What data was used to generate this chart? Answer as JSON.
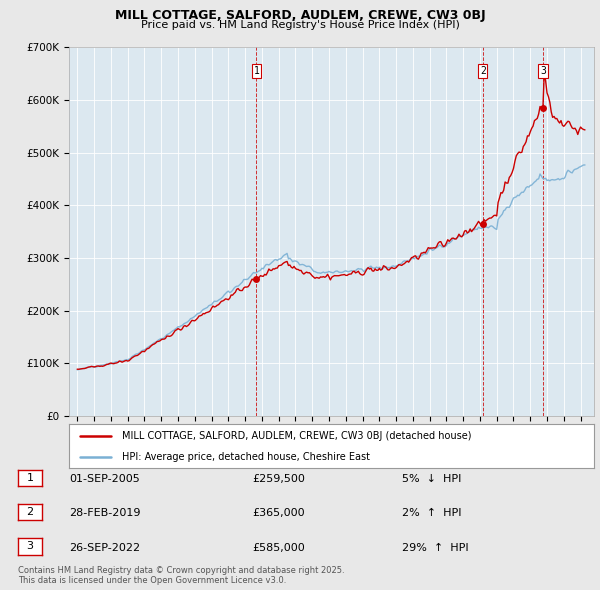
{
  "title": "MILL COTTAGE, SALFORD, AUDLEM, CREWE, CW3 0BJ",
  "subtitle": "Price paid vs. HM Land Registry's House Price Index (HPI)",
  "ylim": [
    0,
    700000
  ],
  "yticks": [
    0,
    100000,
    200000,
    300000,
    400000,
    500000,
    600000,
    700000
  ],
  "ytick_labels": [
    "£0",
    "£100K",
    "£200K",
    "£300K",
    "£400K",
    "£500K",
    "£600K",
    "£700K"
  ],
  "xlim_start": 1994.5,
  "xlim_end": 2025.8,
  "red_line_label": "MILL COTTAGE, SALFORD, AUDLEM, CREWE, CW3 0BJ (detached house)",
  "blue_line_label": "HPI: Average price, detached house, Cheshire East",
  "transactions": [
    {
      "num": 1,
      "date": "01-SEP-2005",
      "price": 259500,
      "pct": "5%",
      "dir": "↓",
      "year": 2005.67
    },
    {
      "num": 2,
      "date": "28-FEB-2019",
      "price": 365000,
      "pct": "2%",
      "dir": "↑",
      "year": 2019.17
    },
    {
      "num": 3,
      "date": "26-SEP-2022",
      "price": 585000,
      "pct": "29%",
      "dir": "↑",
      "year": 2022.75
    }
  ],
  "footnote": "Contains HM Land Registry data © Crown copyright and database right 2025.\nThis data is licensed under the Open Government Licence v3.0.",
  "red_color": "#cc0000",
  "blue_color": "#7ab0d4",
  "bg_color": "#e8e8e8",
  "plot_bg": "#dce8f0",
  "grid_color": "#ffffff"
}
